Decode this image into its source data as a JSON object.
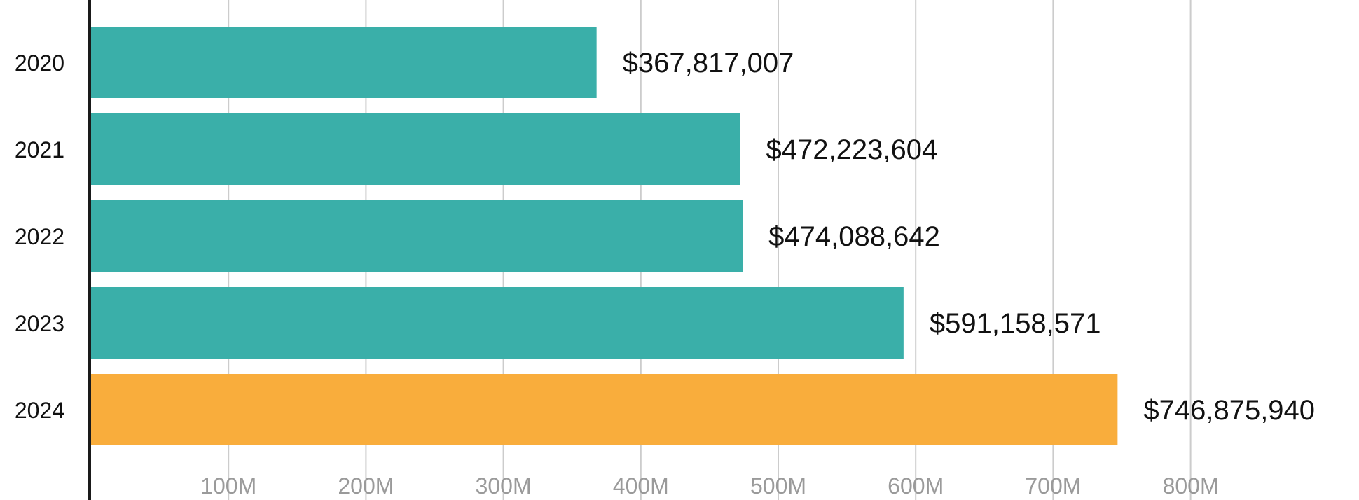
{
  "chart_data": {
    "type": "bar",
    "orientation": "horizontal",
    "categories": [
      "2020",
      "2021",
      "2022",
      "2023",
      "2024"
    ],
    "values": [
      367817007,
      472223604,
      474088642,
      591158571,
      746875940
    ],
    "value_labels": [
      "$367,817,007",
      "$472,223,604",
      "$474,088,642",
      "$591,158,571",
      "$746,875,940"
    ],
    "x_ticks": [
      100000000,
      200000000,
      300000000,
      400000000,
      500000000,
      600000000,
      700000000,
      800000000
    ],
    "x_tick_labels": [
      "100M",
      "200M",
      "300M",
      "400M",
      "500M",
      "600M",
      "700M",
      "800M"
    ],
    "xlim": [
      0,
      800000000
    ],
    "grid": true,
    "title": "",
    "xlabel": "",
    "ylabel": "",
    "colors": {
      "default_bar": "#3aafa9",
      "highlight_bar": "#f9ad3c",
      "highlight_category": "2024",
      "gridline": "#cccccc",
      "axis": "#1a1a1a"
    }
  }
}
